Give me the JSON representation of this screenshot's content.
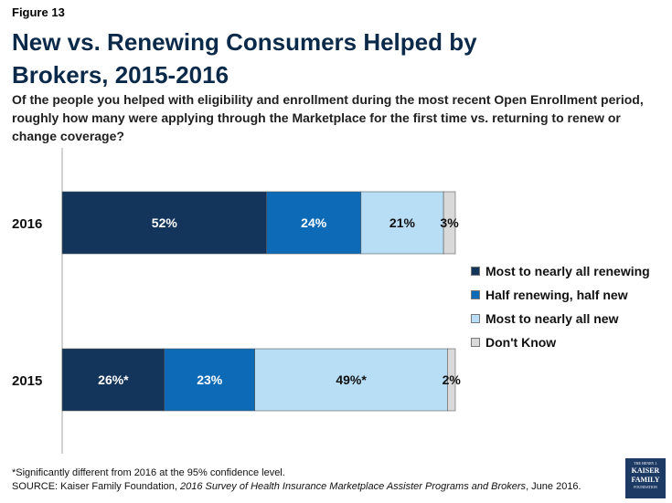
{
  "header": {
    "figure_label": "Figure 13",
    "title": "New vs. Renewing Consumers Helped by Brokers, 2015-2016",
    "subtitle": "Of the people you helped with eligibility and enrollment during the most recent Open Enrollment period, roughly how many were applying through the Marketplace for the first time vs. returning to renew or change coverage?"
  },
  "chart_data": {
    "type": "bar",
    "orientation": "horizontal",
    "stacked": true,
    "categories": [
      "2016",
      "2015"
    ],
    "series": [
      {
        "name": "Most to nearly all renewing",
        "values": [
          52,
          26
        ],
        "labels": [
          "52%",
          "26%*"
        ],
        "color": "#13345b",
        "label_color": "#ffffff"
      },
      {
        "name": "Half renewing, half new",
        "values": [
          24,
          23
        ],
        "labels": [
          "24%",
          "23%"
        ],
        "color": "#0d6ab7",
        "label_color": "#ffffff"
      },
      {
        "name": "Most to nearly all new",
        "values": [
          21,
          49
        ],
        "labels": [
          "21%",
          "49%*"
        ],
        "color": "#b8def5",
        "label_color": "#111111"
      },
      {
        "name": "Don't Know",
        "values": [
          3,
          2
        ],
        "labels": [
          "3%",
          "2%"
        ],
        "color": "#d9d9d9",
        "label_color": "#111111"
      }
    ],
    "xlim": [
      0,
      100
    ],
    "legend_position": "right"
  },
  "footer": {
    "footnote": "*Significantly different from 2016 at the 95% confidence level.",
    "source_prefix": "SOURCE: Kaiser Family Foundation, ",
    "source_title": "2016 Survey of Health Insurance Marketplace Assister Programs and Brokers",
    "source_suffix": ", June 2016."
  },
  "logo": {
    "line1": "THE HENRY J.",
    "line2": "KAISER",
    "line3": "FAMILY",
    "line4": "FOUNDATION"
  }
}
